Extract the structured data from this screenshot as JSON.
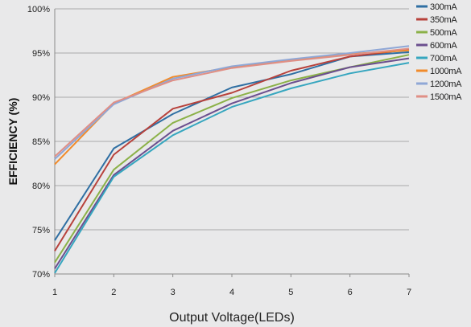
{
  "chart_data": {
    "type": "line",
    "xlabel": "Output Voltage(LEDs)",
    "ylabel": "EFFICIENCY (%)",
    "x": [
      1,
      2,
      3,
      4,
      5,
      6,
      7
    ],
    "xlim": [
      1,
      7
    ],
    "ylim": [
      70,
      100
    ],
    "yticks": [
      70,
      75,
      80,
      85,
      90,
      95,
      100
    ],
    "ytick_labels": [
      "70%",
      "75%",
      "80%",
      "85%",
      "90%",
      "95%",
      "100%"
    ],
    "xtick_labels": [
      "1",
      "2",
      "3",
      "4",
      "5",
      "6",
      "7"
    ],
    "grid": "horizontal",
    "legend": "right",
    "series": [
      {
        "name": "300mA",
        "color": "#2f6fa3",
        "values": [
          73.8,
          84.2,
          88.1,
          91.1,
          92.6,
          94.6,
          95.1
        ]
      },
      {
        "name": "350mA",
        "color": "#b7413b",
        "values": [
          72.6,
          83.5,
          88.7,
          90.5,
          93.0,
          94.6,
          95.4
        ]
      },
      {
        "name": "500mA",
        "color": "#8bb148",
        "values": [
          71.3,
          81.8,
          87.1,
          89.9,
          91.9,
          93.4,
          94.8
        ]
      },
      {
        "name": "600mA",
        "color": "#6b4f8f",
        "values": [
          70.6,
          81.2,
          86.2,
          89.3,
          91.6,
          93.4,
          94.4
        ]
      },
      {
        "name": "700mA",
        "color": "#36a6bf",
        "values": [
          70.1,
          81.0,
          85.7,
          88.9,
          91.0,
          92.7,
          93.9
        ]
      },
      {
        "name": "1000mA",
        "color": "#f18b2b",
        "values": [
          82.4,
          89.3,
          92.3,
          93.4,
          94.2,
          94.9,
          95.3
        ]
      },
      {
        "name": "1200mA",
        "color": "#8fa7d6",
        "values": [
          83.0,
          89.2,
          92.1,
          93.5,
          94.3,
          95.0,
          95.8
        ]
      },
      {
        "name": "1500mA",
        "color": "#e08f86",
        "values": [
          83.3,
          89.4,
          91.9,
          93.3,
          94.1,
          94.8,
          95.5
        ]
      }
    ]
  }
}
